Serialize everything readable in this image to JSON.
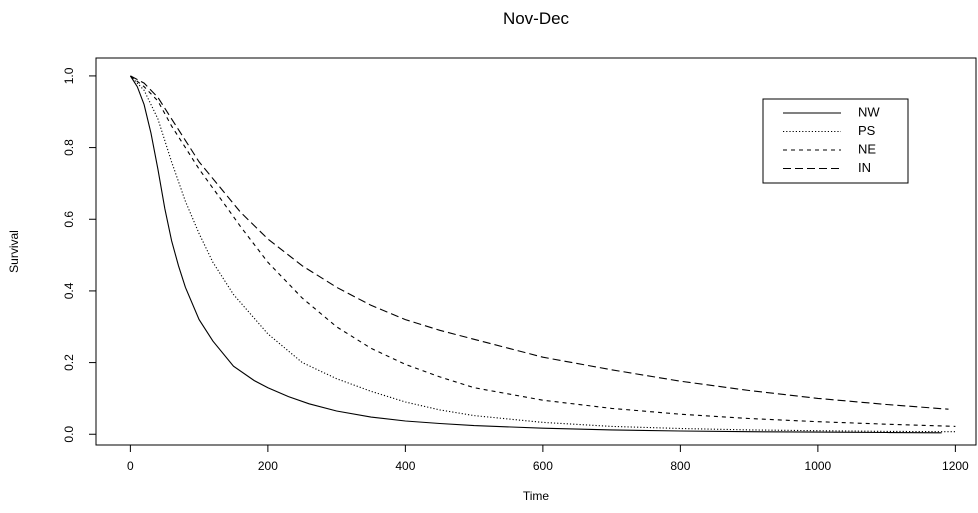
{
  "chart_data": {
    "type": "line",
    "title": "Nov-Dec",
    "xlabel": "Time",
    "ylabel": "Survival",
    "xlim": [
      -50,
      1230
    ],
    "ylim": [
      -0.03,
      1.05
    ],
    "xticks": [
      0,
      200,
      400,
      600,
      800,
      1000,
      1200
    ],
    "yticks": [
      0.0,
      0.2,
      0.4,
      0.6,
      0.8,
      1.0
    ],
    "xtick_labels": [
      "0",
      "200",
      "400",
      "600",
      "800",
      "1000",
      "1200"
    ],
    "ytick_labels": [
      "0.0",
      "0.2",
      "0.4",
      "0.6",
      "0.8",
      "1.0"
    ],
    "grid": false,
    "legend_position": "top-right",
    "colors": {
      "line": "#000000",
      "background": "#ffffff"
    },
    "series": [
      {
        "name": "NW",
        "dash": "solid",
        "x": [
          0,
          10,
          20,
          30,
          40,
          50,
          60,
          70,
          80,
          100,
          120,
          150,
          180,
          200,
          230,
          260,
          300,
          350,
          400,
          450,
          500,
          600,
          700,
          800,
          900,
          1000,
          1100,
          1180
        ],
        "y": [
          1.0,
          0.97,
          0.92,
          0.84,
          0.74,
          0.63,
          0.54,
          0.47,
          0.41,
          0.32,
          0.26,
          0.19,
          0.15,
          0.13,
          0.105,
          0.085,
          0.065,
          0.048,
          0.037,
          0.03,
          0.024,
          0.017,
          0.012,
          0.009,
          0.007,
          0.006,
          0.005,
          0.004
        ]
      },
      {
        "name": "PS",
        "dash": "dotted",
        "x": [
          0,
          20,
          40,
          60,
          80,
          100,
          120,
          150,
          200,
          250,
          300,
          350,
          400,
          450,
          500,
          600,
          700,
          800,
          900,
          1000,
          1100,
          1200
        ],
        "y": [
          1.0,
          0.96,
          0.88,
          0.76,
          0.65,
          0.56,
          0.48,
          0.39,
          0.28,
          0.2,
          0.155,
          0.12,
          0.09,
          0.068,
          0.052,
          0.033,
          0.022,
          0.016,
          0.012,
          0.01,
          0.008,
          0.007
        ]
      },
      {
        "name": "NE",
        "dash": "dashed",
        "x": [
          0,
          20,
          40,
          60,
          80,
          100,
          130,
          160,
          200,
          250,
          300,
          350,
          400,
          450,
          500,
          600,
          700,
          800,
          900,
          1000,
          1100,
          1200
        ],
        "y": [
          1.0,
          0.97,
          0.93,
          0.86,
          0.8,
          0.74,
          0.66,
          0.58,
          0.48,
          0.38,
          0.3,
          0.24,
          0.195,
          0.16,
          0.13,
          0.095,
          0.072,
          0.056,
          0.044,
          0.035,
          0.028,
          0.022
        ]
      },
      {
        "name": "IN",
        "dash": "longdash",
        "x": [
          0,
          20,
          40,
          60,
          80,
          100,
          130,
          160,
          200,
          250,
          300,
          350,
          400,
          450,
          500,
          600,
          700,
          800,
          900,
          1000,
          1100,
          1190
        ],
        "y": [
          1.0,
          0.98,
          0.94,
          0.88,
          0.82,
          0.76,
          0.69,
          0.62,
          0.545,
          0.47,
          0.41,
          0.36,
          0.32,
          0.29,
          0.265,
          0.215,
          0.18,
          0.148,
          0.122,
          0.1,
          0.083,
          0.07
        ]
      }
    ]
  }
}
